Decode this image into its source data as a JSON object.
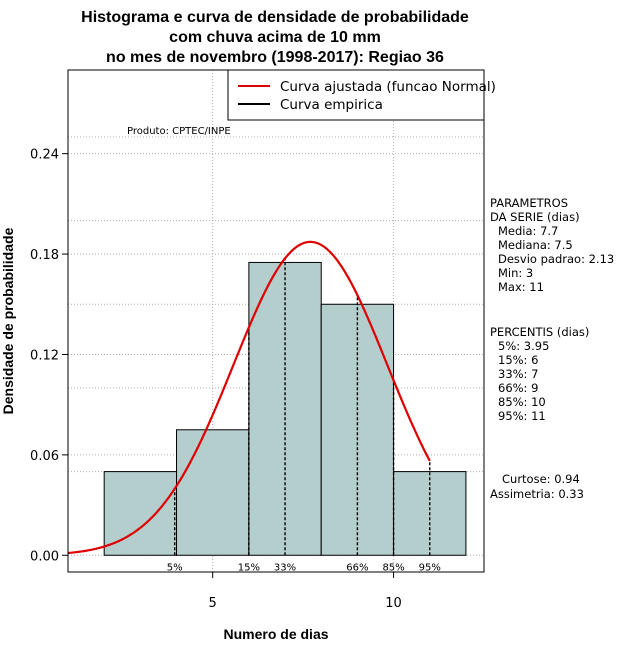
{
  "chart_data": {
    "type": "bar",
    "title_lines": [
      "Histograma e curva de densidade de probabilidade",
      "com chuva acima de 10 mm",
      "no mes de novembro (1998-2017): Regiao 36"
    ],
    "xlabel": "Numero de dias",
    "ylabel": "Densidade de probabilidade",
    "xlim": [
      1,
      12.5
    ],
    "ylim": [
      -0.01,
      0.29
    ],
    "x_ticks": [
      5,
      10
    ],
    "y_ticks": [
      0.0,
      0.06,
      0.12,
      0.18,
      0.24
    ],
    "y_tick_labels": [
      "0.00",
      "0.06",
      "0.12",
      "0.18",
      "0.24"
    ],
    "grid": true,
    "grid_x": [
      5,
      10
    ],
    "grid_y": [
      0.0,
      0.06,
      0.12,
      0.18,
      0.24
    ],
    "grid_y_minor": [
      0.05,
      0.1,
      0.15,
      0.2,
      0.25
    ],
    "bins": [
      {
        "from": 2,
        "to": 4,
        "density": 0.05
      },
      {
        "from": 4,
        "to": 6,
        "density": 0.075
      },
      {
        "from": 6,
        "to": 8,
        "density": 0.175
      },
      {
        "from": 8,
        "to": 10,
        "density": 0.15
      },
      {
        "from": 10,
        "to": 12,
        "density": 0.05
      }
    ],
    "bar_color": "#b4cdcd",
    "series": [
      {
        "name": "Curva ajustada (funcao Normal)",
        "type": "line",
        "color": "#e00000",
        "mean": 7.7,
        "sd": 2.13,
        "x_range": [
          1,
          11
        ]
      },
      {
        "name": "Curva empirica",
        "type": "line",
        "color": "#000000"
      }
    ],
    "legend_position": "top-right",
    "percentile_markers": [
      {
        "label": "5%",
        "x": 3.95
      },
      {
        "label": "15%",
        "x": 6
      },
      {
        "label": "33%",
        "x": 7
      },
      {
        "label": "66%",
        "x": 9
      },
      {
        "label": "85%",
        "x": 10
      },
      {
        "label": "95%",
        "x": 11
      }
    ],
    "product_label": "Produto: CPTEC/INPE",
    "parametros": {
      "heading": [
        "PARAMETROS",
        "DA SERIE (dias)"
      ],
      "items": [
        "Media: 7.7",
        "Mediana: 7.5",
        "Desvio padrao: 2.13",
        "Min: 3",
        "Max: 11"
      ]
    },
    "percentis": {
      "heading": "PERCENTIS (dias)",
      "items": [
        "5%: 3.95",
        "15%: 6",
        "33%: 7",
        "66%: 9",
        "85%: 10",
        "95%: 11"
      ]
    },
    "shape": [
      "Curtose: 0.94",
      "Assimetria: 0.33"
    ]
  }
}
